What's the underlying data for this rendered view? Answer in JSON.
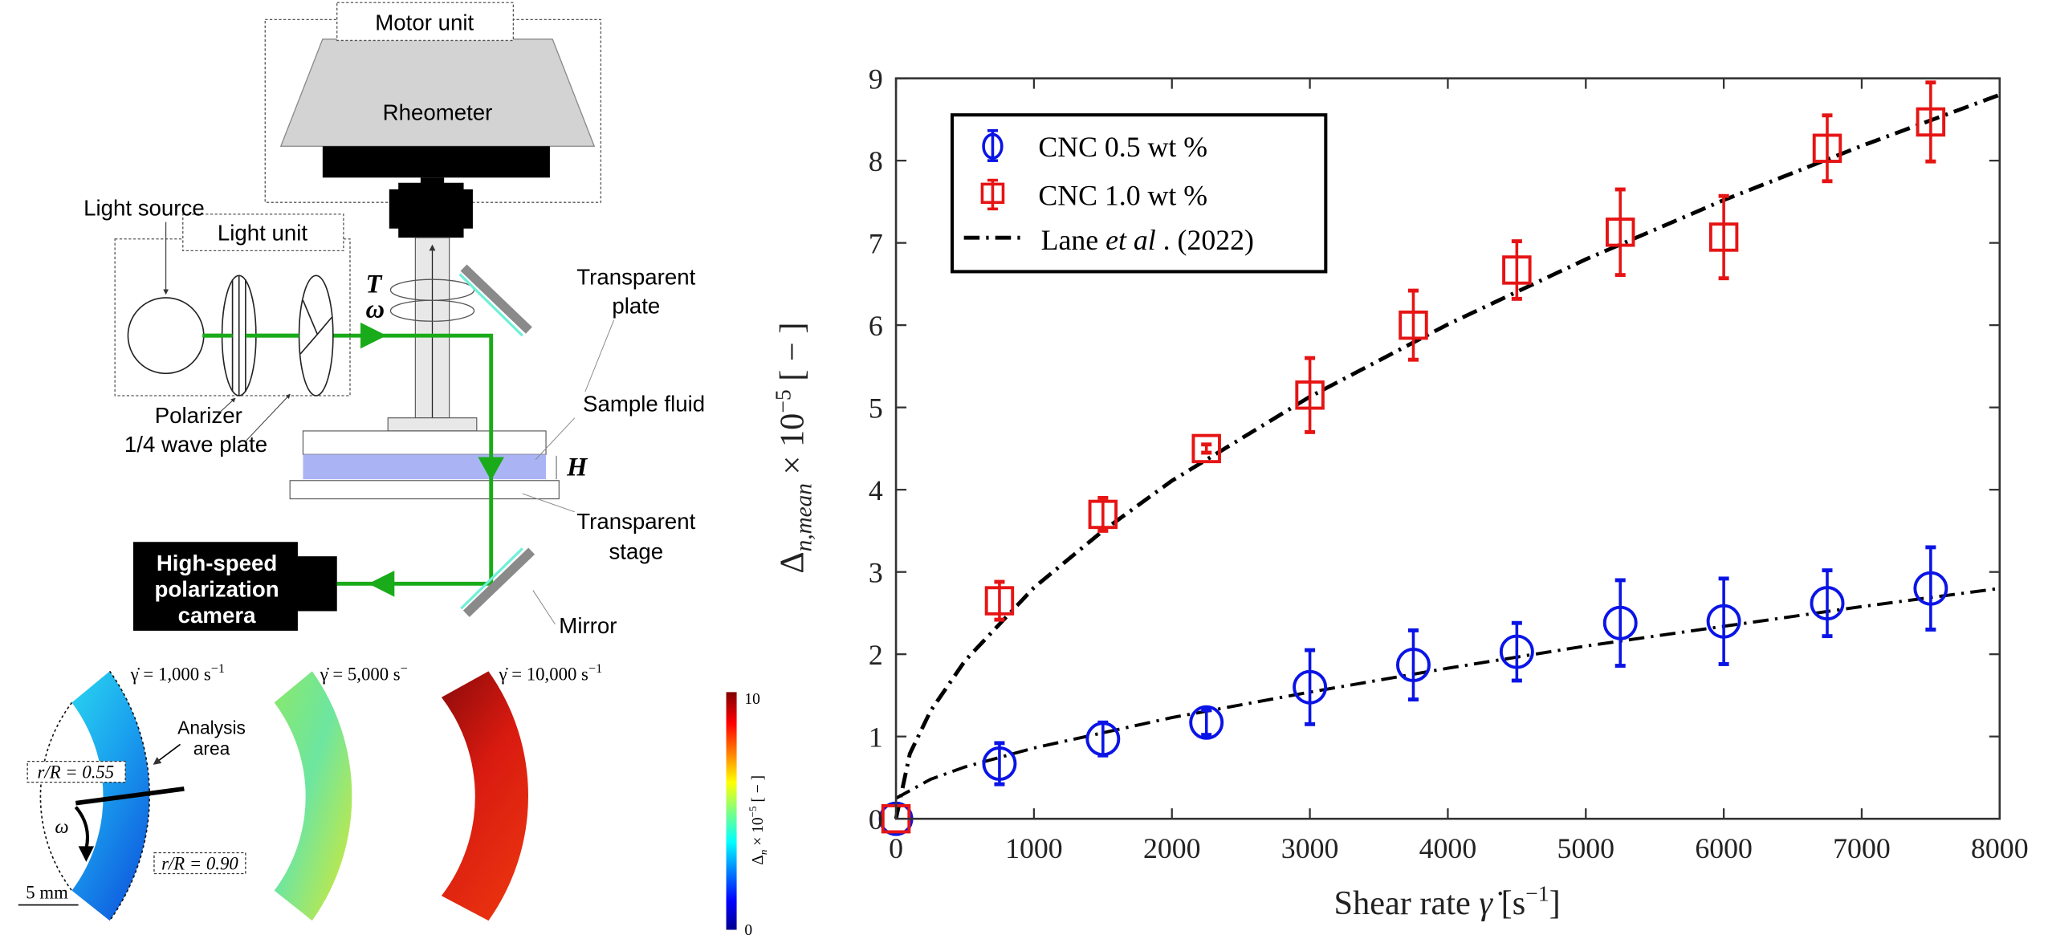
{
  "diagram": {
    "motor_unit": "Motor unit",
    "rheometer": "Rheometer",
    "light_source": "Light source",
    "light_unit": "Light unit",
    "torque_symbol": "T",
    "omega_symbol": "ω",
    "transparent_plate": [
      "Transparent",
      "plate"
    ],
    "sample_fluid": "Sample fluid",
    "gap_symbol": "H",
    "polarizer": "Polarizer",
    "wave_plate": "1/4 wave plate",
    "transparent_stage": [
      "Transparent",
      "stage"
    ],
    "mirror": "Mirror",
    "camera": [
      "High-speed",
      "polarization",
      "camera"
    ],
    "beam_color": "#1aab1a",
    "fluid_color": "#aab4f5",
    "images": [
      {
        "label": "γ̇ = 1,000 s",
        "sup": "−1"
      },
      {
        "label": "γ̇ = 5,000 s",
        "sup": "−"
      },
      {
        "label": "γ̇ = 10,000 s",
        "sup": "−1"
      }
    ],
    "analysis_area": [
      "Analysis",
      "area"
    ],
    "r_inner": "r/R = 0.55",
    "r_outer": "r/R = 0.90",
    "rotation_symbol": "ω",
    "scale_bar": "5 mm",
    "colorbar": {
      "max": "10",
      "min": "0",
      "label_parts": [
        "Δ",
        "n",
        " × 10",
        "−5",
        " [ − ]"
      ],
      "colormap": "jet"
    }
  },
  "chart_data": {
    "type": "scatter",
    "xlabel_parts": [
      "Shear rate ",
      "γ̇",
      " [s",
      "−1",
      "]"
    ],
    "ylabel_parts": [
      "Δ",
      "n,mean",
      " × 10",
      "−5",
      " [ − ]"
    ],
    "xlim": [
      0,
      8000
    ],
    "ylim": [
      0,
      9
    ],
    "xticks": [
      "0",
      "1000",
      "2000",
      "3000",
      "4000",
      "5000",
      "6000",
      "7000",
      "8000"
    ],
    "yticks": [
      "0",
      "1",
      "2",
      "3",
      "4",
      "5",
      "6",
      "7",
      "8",
      "9"
    ],
    "grid": false,
    "legend_position": "top-left",
    "series": [
      {
        "name": "CNC 0.5 wt %",
        "color": "#0a14e6",
        "marker": "circle",
        "x": [
          0,
          750,
          1500,
          2250,
          3000,
          3750,
          4500,
          5250,
          6000,
          6750,
          7500
        ],
        "y": [
          0,
          0.67,
          0.97,
          1.17,
          1.6,
          1.87,
          2.03,
          2.38,
          2.4,
          2.62,
          2.8
        ],
        "err": [
          0,
          0.25,
          0.2,
          0.15,
          0.45,
          0.42,
          0.35,
          0.52,
          0.52,
          0.4,
          0.5
        ]
      },
      {
        "name": "CNC 1.0 wt %",
        "color": "#e61414",
        "marker": "square",
        "x": [
          0,
          750,
          1500,
          2250,
          3000,
          3750,
          4500,
          5250,
          6000,
          6750,
          7500
        ],
        "y": [
          0,
          2.65,
          3.7,
          4.5,
          5.15,
          6.0,
          6.67,
          7.13,
          7.07,
          8.15,
          8.47
        ],
        "err": [
          0,
          0.23,
          0.2,
          0.05,
          0.45,
          0.42,
          0.35,
          0.52,
          0.5,
          0.4,
          0.48
        ]
      }
    ],
    "reference": {
      "name_parts": [
        "Lane ",
        "et al",
        " . (2022)"
      ],
      "color": "#000000",
      "style": "dash-dot",
      "curves": [
        {
          "x": [
            0,
            100,
            250,
            500,
            1000,
            1500,
            2000,
            3000,
            4000,
            5000,
            6000,
            7000,
            8000
          ],
          "y": [
            0,
            0.79,
            1.31,
            1.92,
            2.81,
            3.5,
            4.11,
            5.13,
            6.01,
            6.8,
            7.52,
            8.18,
            8.8
          ]
        },
        {
          "x": [
            0,
            250,
            500,
            1000,
            2000,
            3000,
            4000,
            5000,
            6000,
            7000,
            8000
          ],
          "y": [
            0.25,
            0.48,
            0.63,
            0.86,
            1.23,
            1.54,
            1.83,
            2.1,
            2.34,
            2.58,
            2.8
          ]
        }
      ]
    }
  }
}
